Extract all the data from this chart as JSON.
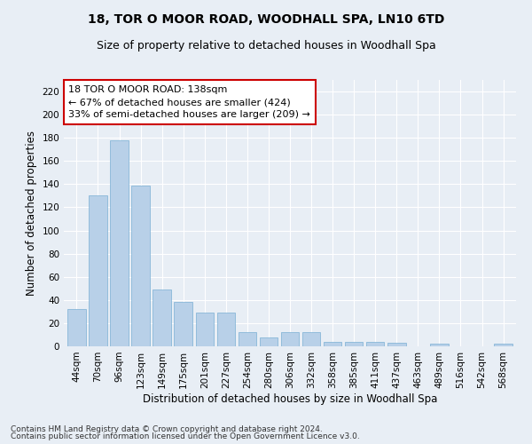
{
  "title1": "18, TOR O MOOR ROAD, WOODHALL SPA, LN10 6TD",
  "title2": "Size of property relative to detached houses in Woodhall Spa",
  "xlabel": "Distribution of detached houses by size in Woodhall Spa",
  "ylabel": "Number of detached properties",
  "categories": [
    "44sqm",
    "70sqm",
    "96sqm",
    "123sqm",
    "149sqm",
    "175sqm",
    "201sqm",
    "227sqm",
    "254sqm",
    "280sqm",
    "306sqm",
    "332sqm",
    "358sqm",
    "385sqm",
    "411sqm",
    "437sqm",
    "463sqm",
    "489sqm",
    "516sqm",
    "542sqm",
    "568sqm"
  ],
  "values": [
    32,
    130,
    178,
    139,
    49,
    38,
    29,
    29,
    12,
    8,
    12,
    12,
    4,
    4,
    4,
    3,
    0,
    2,
    0,
    0,
    2
  ],
  "bar_color": "#b8d0e8",
  "bar_edge_color": "#7aafd4",
  "annotation_text": "18 TOR O MOOR ROAD: 138sqm\n← 67% of detached houses are smaller (424)\n33% of semi-detached houses are larger (209) →",
  "annotation_box_color": "#ffffff",
  "annotation_box_edge_color": "#cc0000",
  "ylim": [
    0,
    230
  ],
  "yticks": [
    0,
    20,
    40,
    60,
    80,
    100,
    120,
    140,
    160,
    180,
    200,
    220
  ],
  "footnote1": "Contains HM Land Registry data © Crown copyright and database right 2024.",
  "footnote2": "Contains public sector information licensed under the Open Government Licence v3.0.",
  "background_color": "#e8eef5",
  "plot_bg_color": "#e8eef5",
  "grid_color": "#ffffff",
  "title1_fontsize": 10,
  "title2_fontsize": 9,
  "axis_label_fontsize": 8.5,
  "tick_fontsize": 7.5,
  "annotation_fontsize": 8,
  "footnote_fontsize": 6.5
}
